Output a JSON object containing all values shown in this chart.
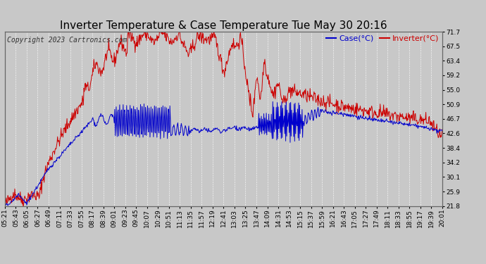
{
  "title": "Inverter Temperature & Case Temperature Tue May 30 20:16",
  "copyright": "Copyright 2023 Cartronics.com",
  "legend_case": "Case(°C)",
  "legend_inverter": "Inverter(°C)",
  "y_ticks": [
    21.8,
    25.9,
    30.1,
    34.2,
    38.4,
    42.6,
    46.7,
    50.9,
    55.0,
    59.2,
    63.4,
    67.5,
    71.7
  ],
  "ylim": [
    21.8,
    71.7
  ],
  "background_color": "#c8c8c8",
  "plot_bg_color": "#c8c8c8",
  "grid_color": "#ffffff",
  "case_color": "#0000cc",
  "inverter_color": "#cc0000",
  "title_color": "#000000",
  "title_fontsize": 11,
  "copyright_fontsize": 7,
  "legend_fontsize": 8,
  "tick_fontsize": 6.5,
  "x_tick_step_min": 22
}
